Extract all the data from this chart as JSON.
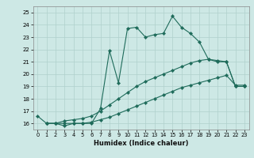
{
  "xlabel": "Humidex (Indice chaleur)",
  "bg_color": "#cde8e5",
  "grid_color": "#b0d0cc",
  "line_color": "#1e6b5a",
  "xlim": [
    -0.5,
    23.5
  ],
  "ylim": [
    15.5,
    25.5
  ],
  "xticks": [
    0,
    1,
    2,
    3,
    4,
    5,
    6,
    7,
    8,
    9,
    10,
    11,
    12,
    13,
    14,
    15,
    16,
    17,
    18,
    19,
    20,
    21,
    22,
    23
  ],
  "yticks": [
    16,
    17,
    18,
    19,
    20,
    21,
    22,
    23,
    24,
    25
  ],
  "series1_x": [
    0,
    1,
    2,
    3,
    4,
    5,
    6,
    7,
    8,
    9,
    10,
    11,
    12,
    13,
    14,
    15,
    16,
    17,
    18,
    19,
    20,
    21,
    22,
    23
  ],
  "series1_y": [
    16.6,
    16.0,
    16.0,
    15.8,
    16.0,
    16.0,
    16.0,
    17.2,
    21.9,
    19.3,
    23.7,
    23.8,
    23.0,
    23.2,
    23.3,
    24.7,
    23.8,
    23.3,
    22.6,
    21.2,
    21.0,
    21.0,
    19.0,
    19.0
  ],
  "series2_x": [
    1,
    2,
    3,
    4,
    5,
    6,
    7,
    8,
    9,
    10,
    11,
    12,
    13,
    14,
    15,
    16,
    17,
    18,
    19,
    20,
    21,
    22,
    23
  ],
  "series2_y": [
    16.0,
    16.0,
    16.2,
    16.3,
    16.4,
    16.6,
    17.0,
    17.5,
    18.0,
    18.5,
    19.0,
    19.4,
    19.7,
    20.0,
    20.3,
    20.6,
    20.9,
    21.1,
    21.2,
    21.1,
    21.0,
    19.0,
    19.0
  ],
  "series3_x": [
    1,
    2,
    3,
    4,
    5,
    6,
    7,
    8,
    9,
    10,
    11,
    12,
    13,
    14,
    15,
    16,
    17,
    18,
    19,
    20,
    21,
    22,
    23
  ],
  "series3_y": [
    16.0,
    16.0,
    16.0,
    16.0,
    16.0,
    16.1,
    16.3,
    16.5,
    16.8,
    17.1,
    17.4,
    17.7,
    18.0,
    18.3,
    18.6,
    18.9,
    19.1,
    19.3,
    19.5,
    19.7,
    19.9,
    19.1,
    19.1
  ]
}
